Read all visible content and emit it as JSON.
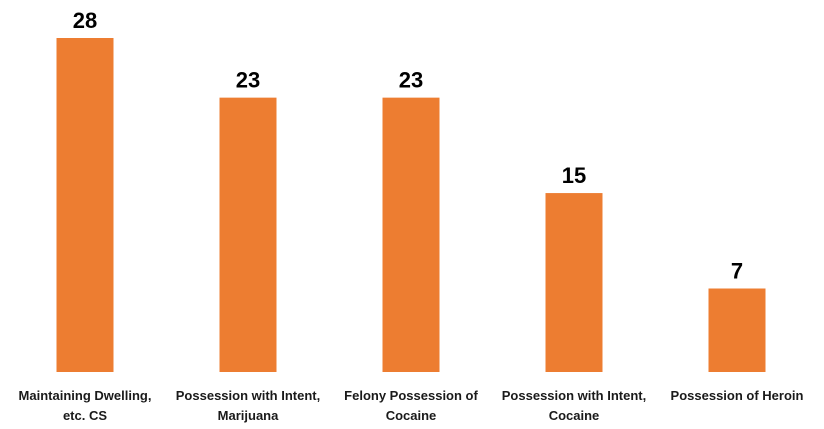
{
  "chart_data": {
    "type": "bar",
    "categories": [
      [
        "Maintaining Dwelling,",
        "etc. CS"
      ],
      [
        "Possession with Intent,",
        "Marijuana"
      ],
      [
        "Felony Possession of",
        "Cocaine"
      ],
      [
        "Possession with Intent,",
        "Cocaine"
      ],
      [
        "Possession of Heroin"
      ]
    ],
    "values": [
      28,
      23,
      23,
      15,
      7
    ],
    "title": "",
    "xlabel": "",
    "ylabel": "",
    "ylim": [
      0,
      28
    ],
    "grid": false,
    "legend": "none",
    "bar_color": "#ED7D31"
  }
}
